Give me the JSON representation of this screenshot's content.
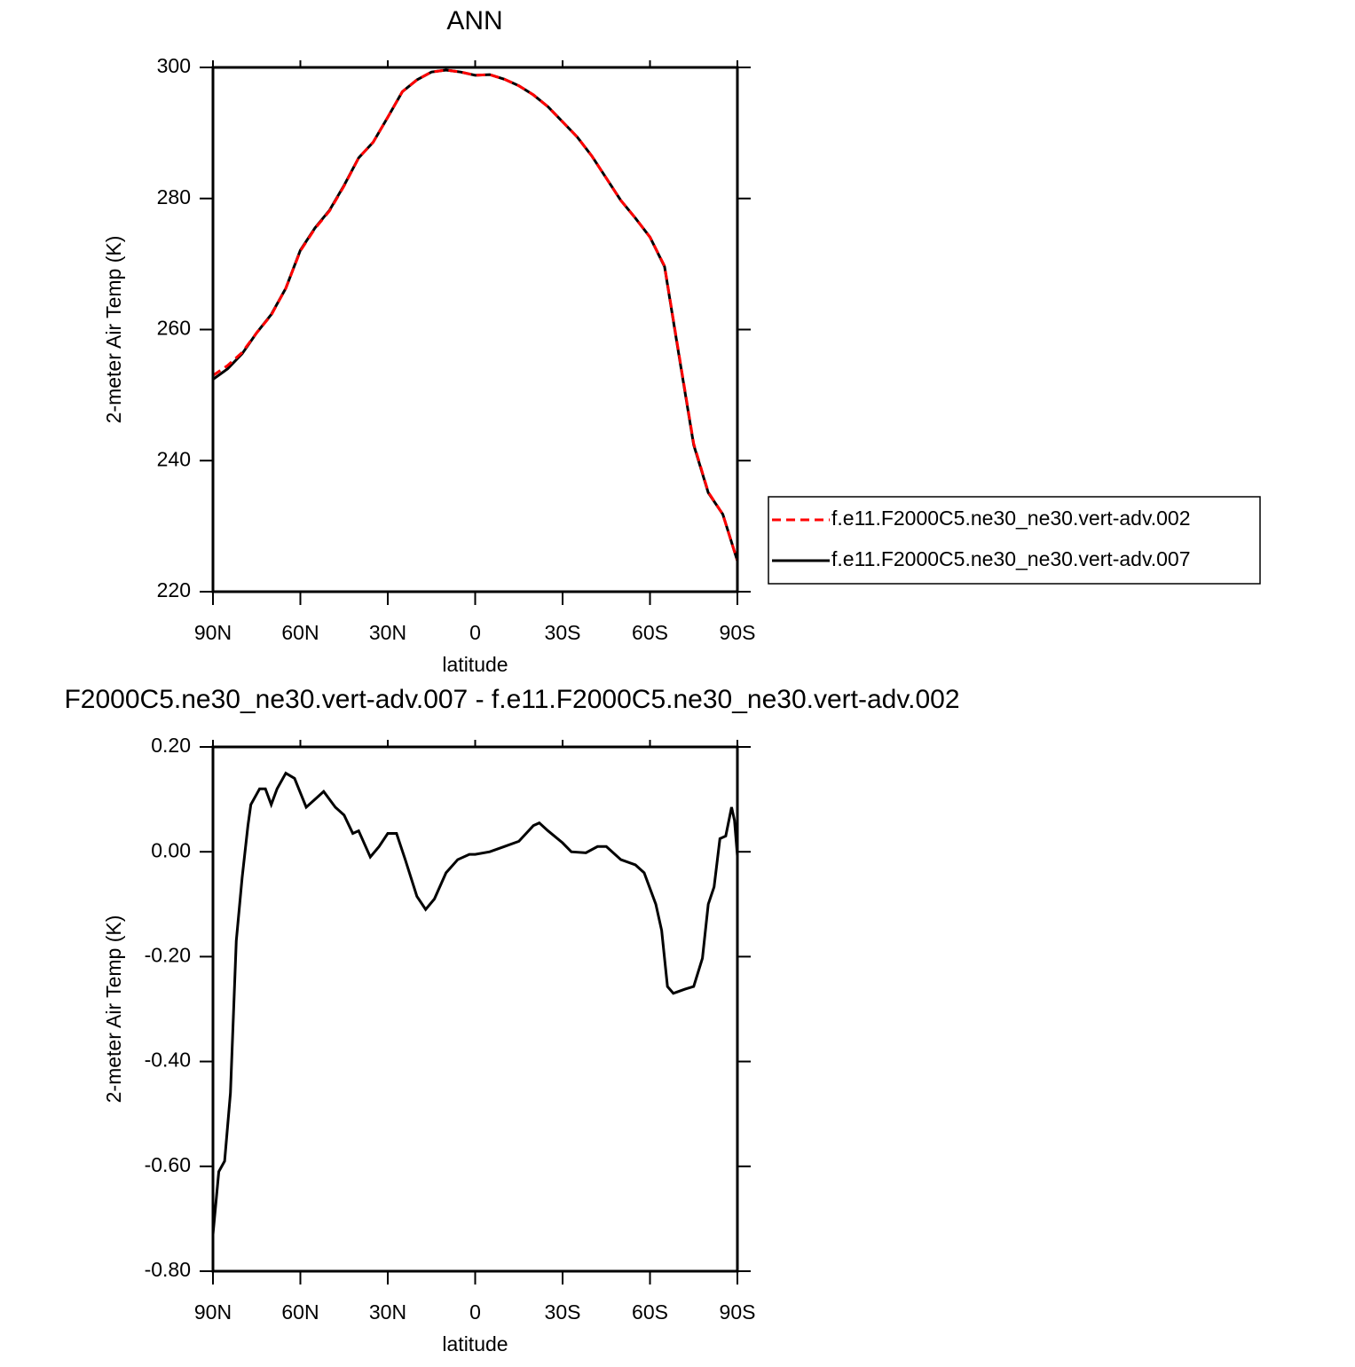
{
  "chart_data": [
    {
      "type": "line",
      "title": "ANN",
      "xlabel": "latitude",
      "ylabel": "2-meter Air Temp (K)",
      "x": [
        90,
        85,
        80,
        75,
        70,
        65,
        60,
        55,
        50,
        45,
        40,
        35,
        30,
        25,
        20,
        15,
        10,
        5,
        0,
        -5,
        -10,
        -15,
        -20,
        -25,
        -30,
        -35,
        -40,
        -45,
        -50,
        -55,
        -60,
        -65,
        -70,
        -75,
        -80,
        -85,
        -90
      ],
      "xlim": [
        90,
        -90
      ],
      "xticks": [
        {
          "value": 90,
          "label": "90N"
        },
        {
          "value": 60,
          "label": "60N"
        },
        {
          "value": 30,
          "label": "30N"
        },
        0,
        {
          "value": -30,
          "label": "30S"
        },
        {
          "value": -60,
          "label": "60S"
        },
        {
          "value": -90,
          "label": "90S"
        }
      ],
      "ylim": [
        220,
        300
      ],
      "yticks": [
        220,
        240,
        260,
        280,
        300
      ],
      "legend": "right",
      "series": [
        {
          "name": "f.e11.F2000C5.ne30_ne30.vert-adv.002",
          "color": "#ff0000",
          "style": "dashed",
          "values": [
            253.0,
            254.5,
            256.5,
            259.5,
            262.2,
            266.3,
            272.0,
            275.4,
            278.1,
            281.9,
            286.2,
            288.6,
            292.4,
            296.3,
            298.1,
            299.3,
            299.6,
            299.3,
            298.8,
            298.9,
            298.2,
            297.2,
            295.8,
            294.0,
            291.7,
            289.4,
            286.5,
            283.1,
            279.7,
            277.0,
            274.1,
            269.7,
            256.1,
            242.6,
            235.2,
            231.8,
            224.7
          ]
        },
        {
          "name": "f.e11.F2000C5.ne30_ne30.vert-adv.007",
          "color": "#000000",
          "style": "solid",
          "values": [
            252.4,
            254.0,
            256.3,
            259.5,
            262.3,
            266.3,
            272.1,
            275.5,
            278.2,
            282.0,
            286.2,
            288.6,
            292.4,
            296.3,
            298.1,
            299.3,
            299.6,
            299.3,
            298.8,
            298.9,
            298.2,
            297.2,
            295.8,
            294.0,
            291.7,
            289.4,
            286.5,
            283.1,
            279.7,
            277.0,
            274.1,
            269.6,
            255.9,
            242.4,
            235.1,
            231.8,
            224.7
          ]
        }
      ]
    },
    {
      "type": "line",
      "title": "F2000C5.ne30_ne30.vert-adv.007 - f.e11.F2000C5.ne30_ne30.vert-adv.002",
      "xlabel": "latitude",
      "ylabel": "2-meter Air Temp (K)",
      "x": [
        90,
        88,
        86,
        84,
        82,
        80,
        78,
        77,
        75,
        74,
        72,
        70,
        68,
        65,
        62,
        58,
        55,
        52,
        48,
        45,
        42,
        40,
        36,
        33,
        30,
        27,
        24,
        20,
        17,
        14,
        10,
        6,
        2,
        0,
        -5,
        -10,
        -15,
        -20,
        -22,
        -25,
        -30,
        -33,
        -38,
        -42,
        -45,
        -50,
        -55,
        -58,
        -62,
        -64,
        -66,
        -68,
        -72,
        -75,
        -78,
        -80,
        -82,
        -84,
        -86,
        -88,
        -89,
        -90
      ],
      "values": [
        -0.73,
        -0.61,
        -0.59,
        -0.46,
        -0.17,
        -0.05,
        0.05,
        0.09,
        0.11,
        0.12,
        0.12,
        0.09,
        0.12,
        0.15,
        0.14,
        0.085,
        0.1,
        0.115,
        0.085,
        0.07,
        0.035,
        0.04,
        -0.01,
        0.01,
        0.035,
        0.035,
        -0.015,
        -0.085,
        -0.11,
        -0.09,
        -0.04,
        -0.015,
        -0.005,
        -0.005,
        0,
        0.01,
        0.02,
        0.05,
        0.055,
        0.04,
        0.017,
        0,
        -0.002,
        0.01,
        0.01,
        -0.015,
        -0.025,
        -0.04,
        -0.1,
        -0.15,
        -0.257,
        -0.27,
        -0.262,
        -0.257,
        -0.203,
        -0.1,
        -0.067,
        0.025,
        0.03,
        0.085,
        0.06,
        -0.008
      ],
      "color": "#000000",
      "xlim": [
        90,
        -90
      ],
      "xticks": [
        {
          "value": 90,
          "label": "90N"
        },
        {
          "value": 60,
          "label": "60N"
        },
        {
          "value": 30,
          "label": "30N"
        },
        0,
        {
          "value": -30,
          "label": "30S"
        },
        {
          "value": -60,
          "label": "60S"
        },
        {
          "value": -90,
          "label": "90S"
        }
      ],
      "ylim": [
        -0.8,
        0.2
      ],
      "yticks": [
        {
          "value": -0.8,
          "label": "-0.80"
        },
        {
          "value": -0.6,
          "label": "-0.60"
        },
        {
          "value": -0.4,
          "label": "-0.40"
        },
        {
          "value": -0.2,
          "label": "-0.20"
        },
        {
          "value": 0,
          "label": "0.00"
        },
        {
          "value": 0.2,
          "label": "0.20"
        }
      ]
    }
  ]
}
